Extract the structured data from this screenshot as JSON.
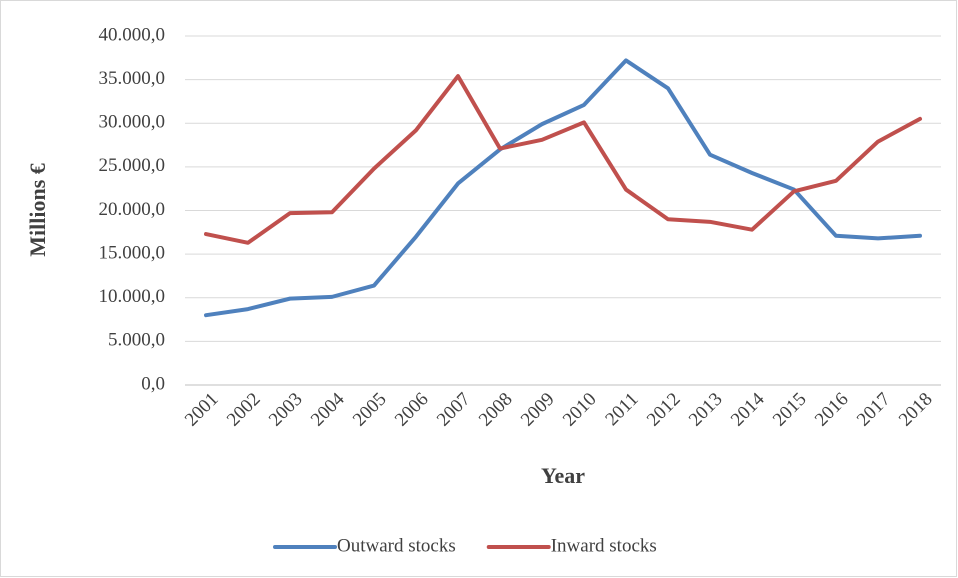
{
  "chart_data": {
    "type": "line",
    "x_label": "Year",
    "y_label": "Millions €",
    "categories": [
      "2001",
      "2002",
      "2003",
      "2004",
      "2005",
      "2006",
      "2007",
      "2008",
      "2009",
      "2010",
      "2011",
      "2012",
      "2013",
      "2014",
      "2015",
      "2016",
      "2017",
      "2018"
    ],
    "series": [
      {
        "name": "Outward stocks",
        "color": "#4f81bd",
        "values": [
          8000,
          8700,
          9900,
          10100,
          11400,
          17000,
          23100,
          27000,
          29900,
          32100,
          37200,
          34000,
          26400,
          24300,
          22400,
          17100,
          16800,
          17100
        ]
      },
      {
        "name": "Inward stocks",
        "color": "#c0504d",
        "values": [
          17300,
          16300,
          19700,
          19800,
          24800,
          29200,
          35400,
          27100,
          28100,
          30100,
          22400,
          19000,
          18700,
          17800,
          22200,
          23400,
          27900,
          30500
        ]
      }
    ],
    "ylim": [
      0,
      40000
    ],
    "yticks": [
      {
        "value": 0,
        "label": "0,0"
      },
      {
        "value": 5000,
        "label": "5.000,0"
      },
      {
        "value": 10000,
        "label": "10.000,0"
      },
      {
        "value": 15000,
        "label": "15.000,0"
      },
      {
        "value": 20000,
        "label": "20.000,0"
      },
      {
        "value": 25000,
        "label": "25.000,0"
      },
      {
        "value": 30000,
        "label": "30.000,0"
      },
      {
        "value": 35000,
        "label": "35.000,0"
      },
      {
        "value": 40000,
        "label": "40.000,0"
      }
    ],
    "grid": true,
    "legend": "bottom"
  }
}
